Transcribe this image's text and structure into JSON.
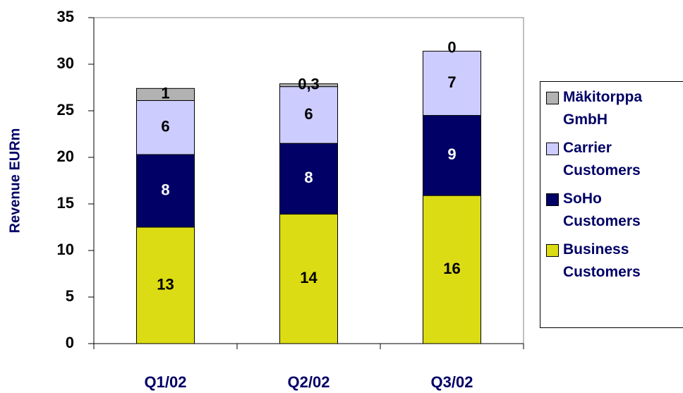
{
  "chart_data": {
    "type": "stacked_bar",
    "y_label": "Revenue EURm",
    "categories": [
      "Q1/02",
      "Q2/02",
      "Q3/02"
    ],
    "series": [
      {
        "name": "Business Customers",
        "color": "#dcdc14",
        "values": [
          12.5,
          13.9,
          15.9
        ],
        "value_labels": [
          "13",
          "14",
          "16"
        ]
      },
      {
        "name": "SoHo Customers",
        "color": "#000066",
        "values": [
          7.8,
          7.6,
          8.6
        ],
        "value_labels": [
          "8",
          "8",
          "9"
        ]
      },
      {
        "name": "Carrier Customers",
        "color": "#ccccff",
        "values": [
          5.8,
          6.1,
          6.9
        ],
        "value_labels": [
          "6",
          "6",
          "7"
        ]
      },
      {
        "name": "Mäkitorppa GmbH",
        "color": "#b2b2b2",
        "values": [
          1.3,
          0.3,
          0
        ],
        "value_labels": [
          "1",
          "0,3",
          "0"
        ]
      }
    ],
    "ylim": [
      0,
      35
    ],
    "yticks": [
      0,
      5,
      10,
      15,
      20,
      25,
      30,
      35
    ],
    "grid": false,
    "legend": "right"
  }
}
